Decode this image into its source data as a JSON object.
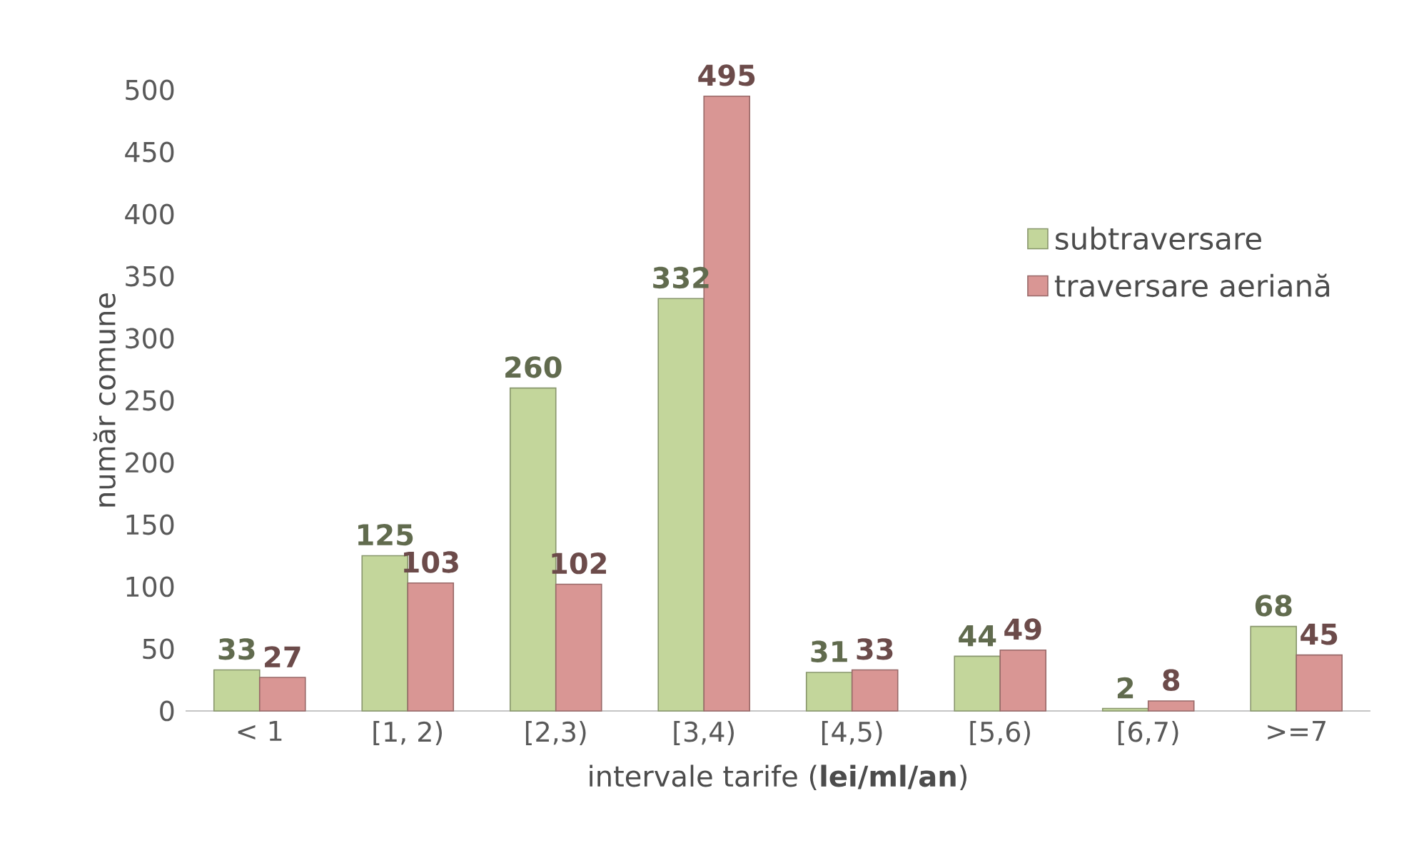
{
  "chart_data": {
    "type": "bar",
    "xlabel": "intervale tarife (**lei/ml/an**)",
    "ylabel": "număr comune",
    "categories": [
      "< 1",
      "[1, 2)",
      "[2,3)",
      "[3,4)",
      "[4,5)",
      "[5,6)",
      "[6,7)",
      ">=7"
    ],
    "series": [
      {
        "name": "subtraversare",
        "color": "#c3d69b",
        "values": [
          33,
          125,
          260,
          332,
          31,
          44,
          2,
          68
        ]
      },
      {
        "name": "traversare aeriană",
        "color": "#d99694",
        "values": [
          27,
          103,
          102,
          495,
          33,
          49,
          8,
          45
        ]
      }
    ],
    "ylim": [
      0,
      500
    ],
    "yticks": [
      0,
      50,
      100,
      150,
      200,
      250,
      300,
      350,
      400,
      450,
      500
    ],
    "data_labels": true,
    "legend": "right",
    "grid": false
  }
}
